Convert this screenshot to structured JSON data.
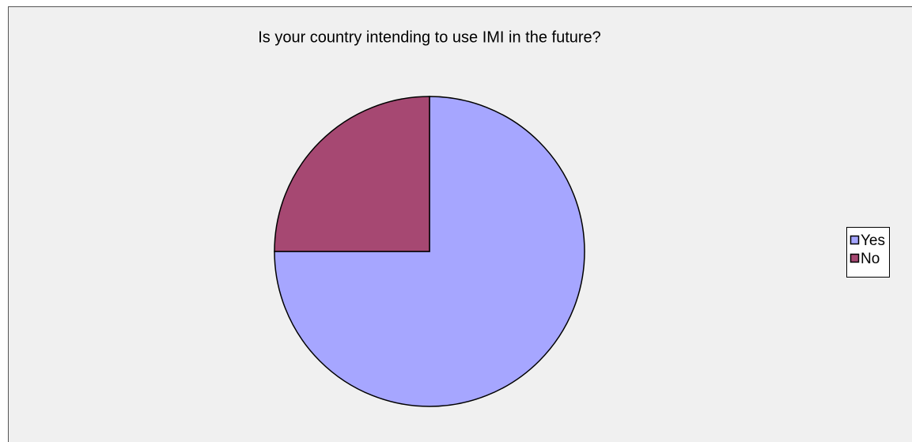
{
  "chart_data": {
    "type": "pie",
    "title": "Is your country intending to use IMI in the future?",
    "categories": [
      "Yes",
      "No"
    ],
    "values": [
      75,
      25
    ],
    "colors": [
      "#a6a6ff",
      "#a64872"
    ],
    "legend": "right"
  }
}
